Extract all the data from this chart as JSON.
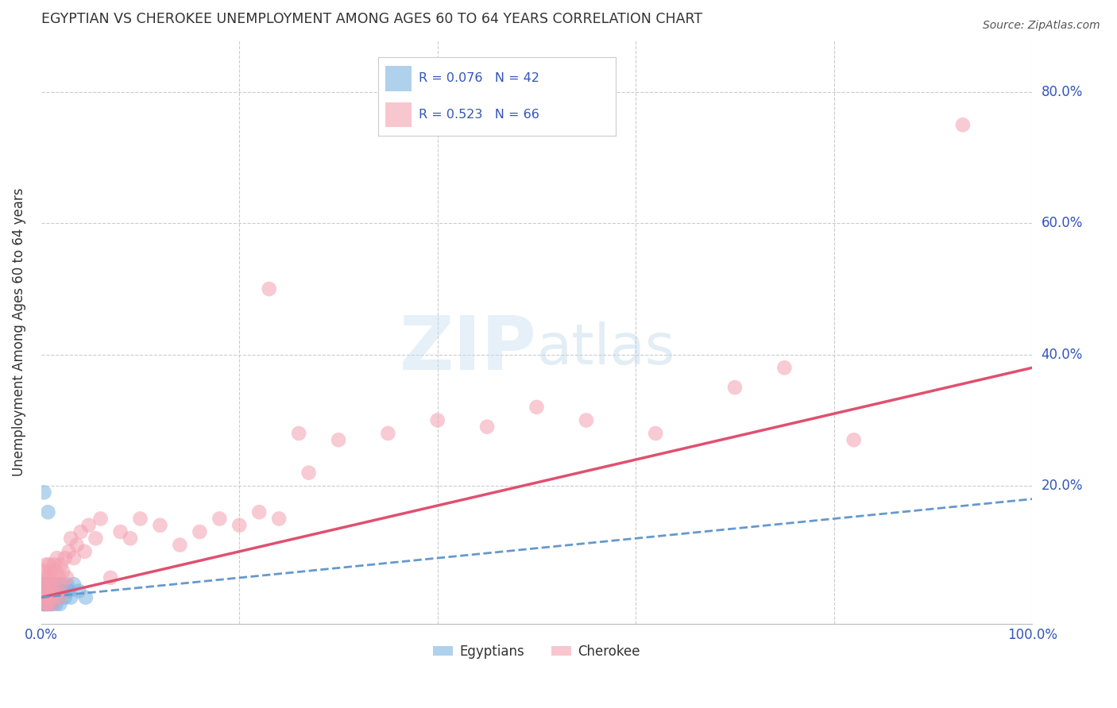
{
  "title": "EGYPTIAN VS CHEROKEE UNEMPLOYMENT AMONG AGES 60 TO 64 YEARS CORRELATION CHART",
  "source": "Source: ZipAtlas.com",
  "ylabel": "Unemployment Among Ages 60 to 64 years",
  "xlim": [
    0.0,
    1.0
  ],
  "ylim": [
    -0.01,
    0.88
  ],
  "background_color": "#ffffff",
  "grid_color": "#cccccc",
  "watermark_zip": "ZIP",
  "watermark_atlas": "atlas",
  "watermark_color_zip": "#c8dff0",
  "watermark_color_atlas": "#b8d4e8",
  "egyptian_color": "#7ab3e0",
  "cherokee_color": "#f4a0b0",
  "egyptian_line_color": "#6699cc",
  "cherokee_line_color": "#e05070",
  "R_egyptian": 0.076,
  "N_egyptian": 42,
  "R_cherokee": 0.523,
  "N_cherokee": 66,
  "legend_label_egyptian": "Egyptians",
  "legend_label_cherokee": "Cherokee",
  "stat_color": "#3355bb",
  "cherokee_line_x0": 0.0,
  "cherokee_line_y0": 0.03,
  "cherokee_line_x1": 1.0,
  "cherokee_line_y1": 0.38,
  "egyptian_line_x0": 0.0,
  "egyptian_line_y0": 0.03,
  "egyptian_line_x1": 1.0,
  "egyptian_line_y1": 0.18,
  "egyptian_x": [
    0.001,
    0.002,
    0.002,
    0.003,
    0.003,
    0.004,
    0.004,
    0.004,
    0.005,
    0.005,
    0.005,
    0.006,
    0.006,
    0.007,
    0.007,
    0.008,
    0.008,
    0.009,
    0.009,
    0.01,
    0.01,
    0.011,
    0.011,
    0.012,
    0.013,
    0.014,
    0.015,
    0.016,
    0.017,
    0.018,
    0.019,
    0.02,
    0.022,
    0.024,
    0.026,
    0.028,
    0.03,
    0.033,
    0.038,
    0.045,
    0.003,
    0.007
  ],
  "egyptian_y": [
    0.02,
    0.03,
    0.04,
    0.02,
    0.05,
    0.03,
    0.04,
    0.02,
    0.03,
    0.04,
    0.02,
    0.05,
    0.03,
    0.04,
    0.02,
    0.05,
    0.03,
    0.04,
    0.02,
    0.03,
    0.05,
    0.04,
    0.02,
    0.05,
    0.03,
    0.04,
    0.02,
    0.05,
    0.03,
    0.04,
    0.02,
    0.05,
    0.04,
    0.03,
    0.05,
    0.04,
    0.03,
    0.05,
    0.04,
    0.03,
    0.19,
    0.16
  ],
  "cherokee_x": [
    0.001,
    0.002,
    0.003,
    0.003,
    0.004,
    0.004,
    0.005,
    0.005,
    0.006,
    0.006,
    0.007,
    0.007,
    0.008,
    0.008,
    0.009,
    0.009,
    0.01,
    0.01,
    0.011,
    0.012,
    0.013,
    0.014,
    0.015,
    0.016,
    0.017,
    0.018,
    0.019,
    0.02,
    0.021,
    0.022,
    0.024,
    0.026,
    0.028,
    0.03,
    0.033,
    0.036,
    0.04,
    0.044,
    0.048,
    0.055,
    0.06,
    0.07,
    0.08,
    0.09,
    0.1,
    0.12,
    0.14,
    0.16,
    0.18,
    0.2,
    0.22,
    0.24,
    0.26,
    0.3,
    0.35,
    0.4,
    0.45,
    0.5,
    0.55,
    0.62,
    0.7,
    0.75,
    0.82,
    0.93,
    0.23,
    0.27
  ],
  "cherokee_y": [
    0.03,
    0.05,
    0.02,
    0.07,
    0.04,
    0.06,
    0.02,
    0.08,
    0.04,
    0.03,
    0.06,
    0.02,
    0.05,
    0.08,
    0.03,
    0.07,
    0.04,
    0.06,
    0.02,
    0.05,
    0.08,
    0.03,
    0.07,
    0.09,
    0.04,
    0.06,
    0.03,
    0.08,
    0.05,
    0.07,
    0.09,
    0.06,
    0.1,
    0.12,
    0.09,
    0.11,
    0.13,
    0.1,
    0.14,
    0.12,
    0.15,
    0.06,
    0.13,
    0.12,
    0.15,
    0.14,
    0.11,
    0.13,
    0.15,
    0.14,
    0.16,
    0.15,
    0.28,
    0.27,
    0.28,
    0.3,
    0.29,
    0.32,
    0.3,
    0.28,
    0.35,
    0.38,
    0.27,
    0.75,
    0.5,
    0.22
  ]
}
